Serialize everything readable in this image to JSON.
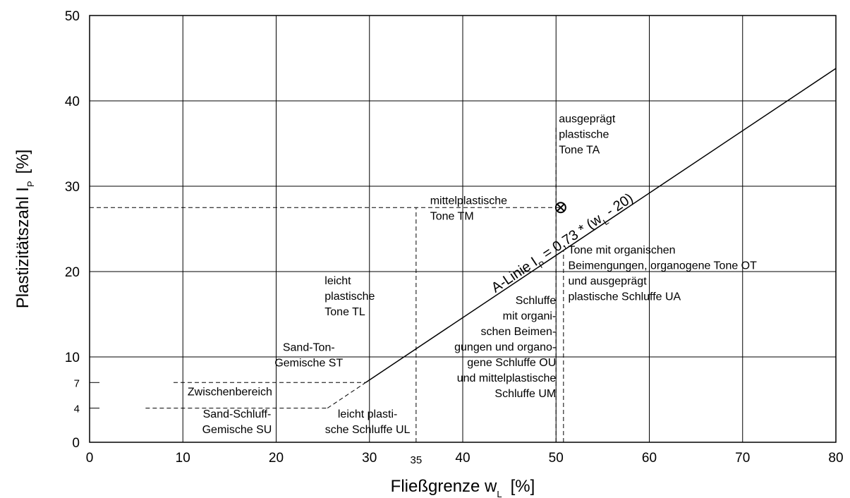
{
  "chart_data": {
    "type": "scatter",
    "title": "",
    "xlabel": "Fließgrenze w",
    "xlabel_sub": "L",
    "xlabel_unit": "[%]",
    "ylabel": "Plastizitätszahl I",
    "ylabel_sub": "P",
    "ylabel_unit": "[%]",
    "xlim": [
      0,
      80
    ],
    "ylim": [
      0,
      50
    ],
    "grid": true,
    "x_ticks": [
      "0",
      "10",
      "20",
      "30",
      "40",
      "50",
      "60",
      "70",
      "80"
    ],
    "x_tick_extra": "35",
    "y_ticks": [
      "0",
      "10",
      "20",
      "30",
      "40",
      "50"
    ],
    "y_ticks_extra": [
      "4",
      "7"
    ],
    "a_line": {
      "label_main": "A-Linie I",
      "label_sub": "P",
      "label_mid": " = 0,73 * (w",
      "label_sub2": "L",
      "label_end": " - 20)",
      "slope": 0.73,
      "offset": 20,
      "x_start": 29.6,
      "x_end": 80
    },
    "marked_point": {
      "x": 50.5,
      "y": 27.5,
      "symbol": "circle-x"
    },
    "boundaries": [
      {
        "from": [
          6,
          4
        ],
        "to": [
          25.5,
          4
        ]
      },
      {
        "from": [
          9,
          7
        ],
        "to": [
          29.6,
          7
        ]
      },
      {
        "from": [
          25.5,
          4
        ],
        "to": [
          29.6,
          7
        ]
      },
      {
        "from": [
          35,
          0
        ],
        "to": [
          35,
          27.5
        ]
      },
      {
        "from": [
          0,
          27.5
        ],
        "to": [
          50.5,
          27.5
        ]
      },
      {
        "from": [
          50,
          0
        ],
        "to": [
          50,
          37
        ]
      },
      {
        "from": [
          50.8,
          0
        ],
        "to": [
          50.8,
          22.5
        ]
      }
    ],
    "regions": [
      {
        "lines": [
          "ausgeprägt",
          "plastische",
          "Tone TA"
        ],
        "x": 50.3,
        "y": 37.5,
        "anchor": "start"
      },
      {
        "lines": [
          "mittelplastische",
          "Tone TM"
        ],
        "x": 36.5,
        "y": 27.9,
        "anchor": "start"
      },
      {
        "lines": [
          "Tone mit organischen",
          "Beimengungen, organogene Tone OT",
          "und ausgeprägt",
          "plastische Schluffe UA"
        ],
        "x": 51.3,
        "y": 22.1,
        "anchor": "start"
      },
      {
        "lines": [
          "leicht",
          "plastische",
          "Tone TL"
        ],
        "x": 25.2,
        "y": 18.5,
        "anchor": "start"
      },
      {
        "lines": [
          "Schluffe",
          "mit organi-",
          "schen Beimen-",
          "gungen und organo-",
          "gene Schluffe OU",
          "und mittelplastische",
          "Schluffe UM"
        ],
        "x": 50,
        "y": 16.2,
        "anchor": "end"
      },
      {
        "lines": [
          "Sand-Ton-",
          "Gemische ST"
        ],
        "x": 23.5,
        "y": 10.7,
        "anchor": "middle"
      },
      {
        "lines": [
          "Zwischenbereich"
        ],
        "x": 10.5,
        "y": 5.5,
        "anchor": "start"
      },
      {
        "lines": [
          "Sand-Schluff-",
          "Gemische SU"
        ],
        "x": 15.8,
        "y": 2.9,
        "anchor": "middle"
      },
      {
        "lines": [
          "leicht plasti-",
          "sche Schluffe UL"
        ],
        "x": 29.8,
        "y": 2.9,
        "anchor": "middle"
      }
    ]
  }
}
